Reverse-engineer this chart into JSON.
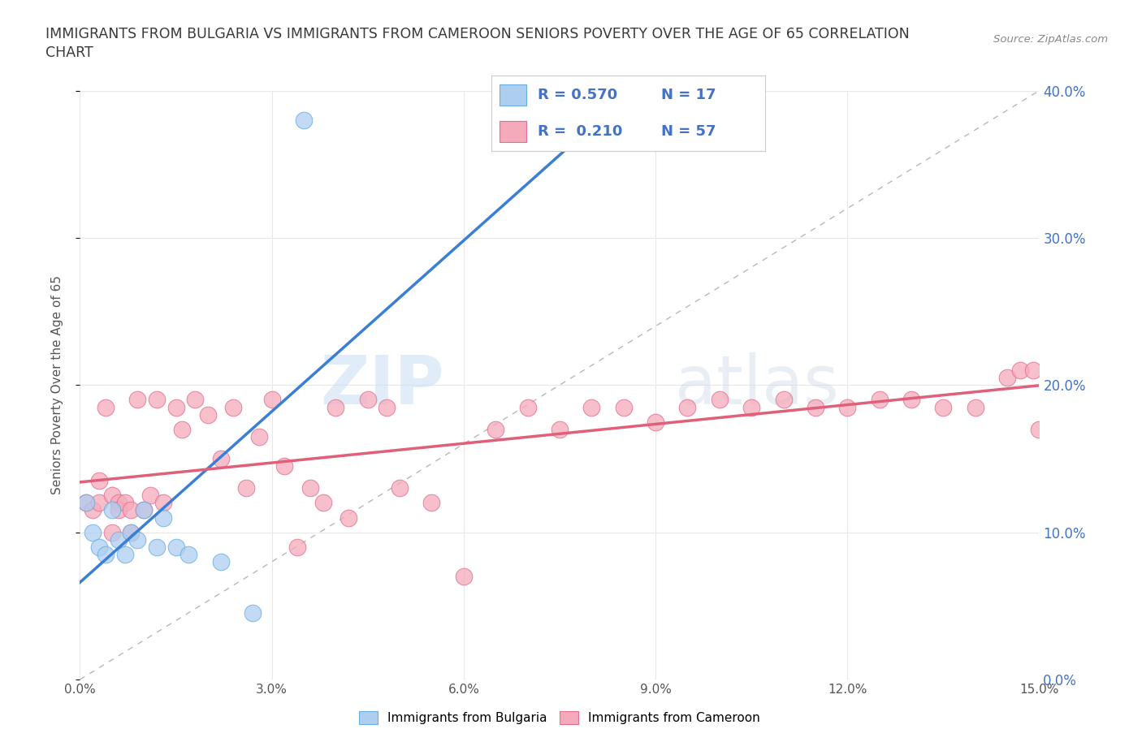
{
  "title_line1": "IMMIGRANTS FROM BULGARIA VS IMMIGRANTS FROM CAMEROON SENIORS POVERTY OVER THE AGE OF 65 CORRELATION",
  "title_line2": "CHART",
  "source": "Source: ZipAtlas.com",
  "ylabel": "Seniors Poverty Over the Age of 65",
  "xlim": [
    0.0,
    0.15
  ],
  "ylim": [
    0.0,
    0.4
  ],
  "xticks": [
    0.0,
    0.03,
    0.06,
    0.09,
    0.12,
    0.15
  ],
  "yticks": [
    0.0,
    0.1,
    0.2,
    0.3,
    0.4
  ],
  "bg_color": "#ffffff",
  "grid_color": "#e8e8e8",
  "watermark_zip": "ZIP",
  "watermark_atlas": "atlas",
  "legend_R_bulgaria": "0.570",
  "legend_N_bulgaria": "17",
  "legend_R_cameroon": "0.210",
  "legend_N_cameroon": "57",
  "bulgaria_color": "#aecef0",
  "cameroon_color": "#f5aabb",
  "bulgaria_edge_color": "#6aaee0",
  "cameroon_edge_color": "#e07090",
  "bulgaria_line_color": "#3a7fd5",
  "cameroon_line_color": "#e0607a",
  "ref_line_color": "#b8b8b8",
  "text_color": "#3a3a3a",
  "label_blue": "#4472c4",
  "bulgaria_x": [
    0.001,
    0.002,
    0.003,
    0.004,
    0.005,
    0.006,
    0.007,
    0.008,
    0.009,
    0.01,
    0.012,
    0.013,
    0.015,
    0.017,
    0.022,
    0.027,
    0.035
  ],
  "bulgaria_y": [
    0.12,
    0.1,
    0.09,
    0.085,
    0.115,
    0.095,
    0.085,
    0.1,
    0.095,
    0.115,
    0.09,
    0.11,
    0.09,
    0.085,
    0.08,
    0.045,
    0.38
  ],
  "cameroon_x": [
    0.001,
    0.002,
    0.003,
    0.003,
    0.004,
    0.005,
    0.005,
    0.006,
    0.006,
    0.007,
    0.008,
    0.008,
    0.009,
    0.01,
    0.011,
    0.012,
    0.013,
    0.015,
    0.016,
    0.018,
    0.02,
    0.022,
    0.024,
    0.026,
    0.028,
    0.03,
    0.032,
    0.034,
    0.036,
    0.038,
    0.04,
    0.042,
    0.045,
    0.048,
    0.05,
    0.055,
    0.06,
    0.065,
    0.07,
    0.075,
    0.08,
    0.085,
    0.09,
    0.095,
    0.1,
    0.105,
    0.11,
    0.115,
    0.12,
    0.125,
    0.13,
    0.135,
    0.14,
    0.145,
    0.147,
    0.149,
    0.15
  ],
  "cameroon_y": [
    0.12,
    0.115,
    0.12,
    0.135,
    0.185,
    0.1,
    0.125,
    0.12,
    0.115,
    0.12,
    0.1,
    0.115,
    0.19,
    0.115,
    0.125,
    0.19,
    0.12,
    0.185,
    0.17,
    0.19,
    0.18,
    0.15,
    0.185,
    0.13,
    0.165,
    0.19,
    0.145,
    0.09,
    0.13,
    0.12,
    0.185,
    0.11,
    0.19,
    0.185,
    0.13,
    0.12,
    0.07,
    0.17,
    0.185,
    0.17,
    0.185,
    0.185,
    0.175,
    0.185,
    0.19,
    0.185,
    0.19,
    0.185,
    0.185,
    0.19,
    0.19,
    0.185,
    0.185,
    0.205,
    0.21,
    0.21,
    0.17
  ],
  "bulgaria_trend": [
    -0.03,
    2.8
  ],
  "cameroon_trend": [
    0.1,
    0.47
  ]
}
